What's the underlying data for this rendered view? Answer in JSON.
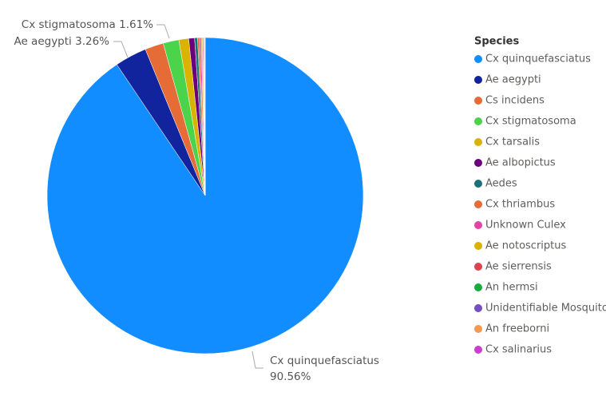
{
  "chart_data": {
    "type": "pie",
    "legend_title": "Species",
    "legend_position": "right",
    "categories": [
      "Cx quinquefasciatus",
      "Ae aegypti",
      "Cs incidens",
      "Cx stigmatosoma",
      "Cx tarsalis",
      "Ae albopictus",
      "Aedes",
      "Cx thriambus",
      "Unknown Culex",
      "Ae notoscriptus",
      "Ae sierrensis",
      "An hermsi",
      "Unidentifiable Mosquito",
      "An freeborni",
      "Cx salinarius"
    ],
    "values": [
      90.56,
      3.26,
      1.9,
      1.61,
      1.0,
      0.6,
      0.3,
      0.2,
      0.17,
      0.12,
      0.08,
      0.07,
      0.06,
      0.04,
      0.03
    ],
    "value_labels": [
      "90.56%",
      "3.26%",
      null,
      "1.61%",
      null,
      null,
      null,
      null,
      null,
      null,
      null,
      null,
      null,
      null,
      null
    ],
    "colors": [
      "#118DFF",
      "#12239E",
      "#E66C37",
      "#4BD34B",
      "#D9B300",
      "#6B007B",
      "#197278",
      "#E66C37",
      "#E044A7",
      "#D9B300",
      "#D64550",
      "#1AAB40",
      "#744EC2",
      "#F5974F",
      "#C83FCF"
    ]
  }
}
